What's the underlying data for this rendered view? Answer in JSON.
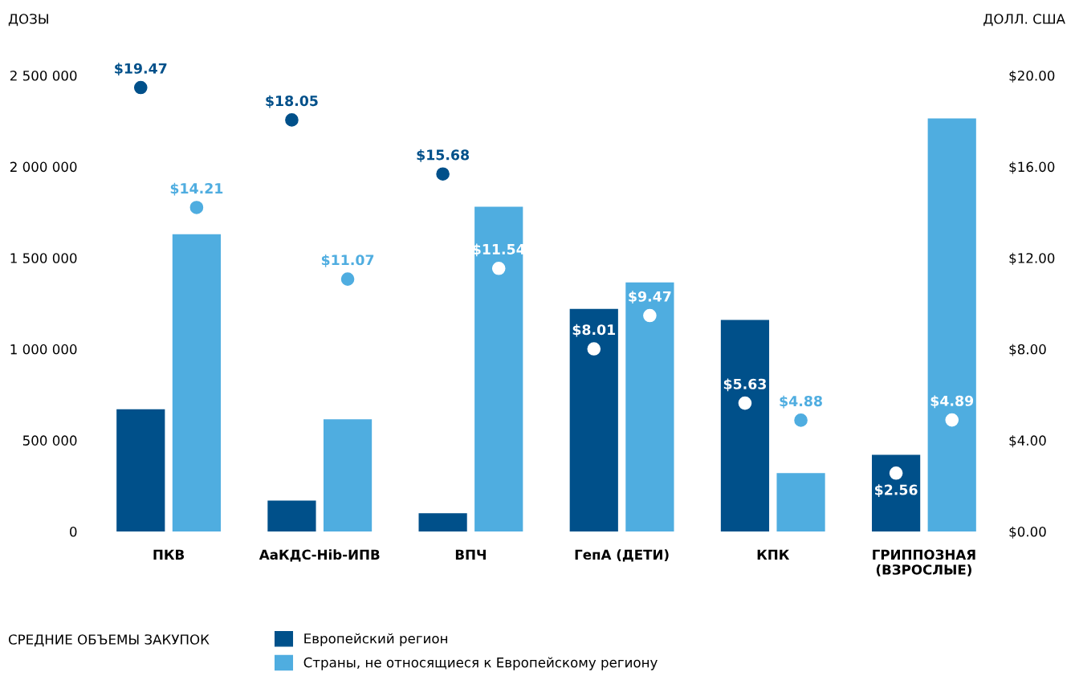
{
  "chart_data": {
    "type": "bar",
    "ylabel": "ДОЗЫ",
    "y2label": "ДОЛЛ. США",
    "legend_title": "СРЕДНИЕ ОБЪЕМЫ ЗАКУПОК",
    "legend": "bottom",
    "grid": false,
    "categories": [
      "ПКВ",
      "АаКДС-Hib-ИПВ",
      "ВПЧ",
      "ГепА (ДЕТИ)",
      "КПК",
      "ГРИППОЗНАЯ\n(ВЗРОСЛЫЕ)"
    ],
    "ylim": [
      0,
      2500000
    ],
    "yticks": [
      {
        "value": 0,
        "label": "0"
      },
      {
        "value": 500000,
        "label": "500 000"
      },
      {
        "value": 1000000,
        "label": "1 000 000"
      },
      {
        "value": 1500000,
        "label": "1 500 000"
      },
      {
        "value": 2000000,
        "label": "2 000 000"
      },
      {
        "value": 2500000,
        "label": "2 500 000"
      }
    ],
    "y2lim": [
      0,
      20
    ],
    "y2ticks": [
      {
        "value": 0,
        "label": "$0.00"
      },
      {
        "value": 4,
        "label": "$4.00"
      },
      {
        "value": 8,
        "label": "$8.00"
      },
      {
        "value": 12,
        "label": "$12.00"
      },
      {
        "value": 16,
        "label": "$16.00"
      },
      {
        "value": 20,
        "label": "$20.00"
      }
    ],
    "series": [
      {
        "name": "Европейский регион",
        "color": "#00508a",
        "values": [
          670000,
          170000,
          100000,
          1220000,
          1160000,
          420000
        ]
      },
      {
        "name": "Страны, не относящиеся к Европейскому региону",
        "color": "#4fade0",
        "values": [
          1630000,
          615000,
          1780000,
          1365000,
          320000,
          2265000
        ]
      },
      {
        "type": "scatter",
        "axis": "y2",
        "color": "#00508a",
        "colors": [
          "#00508a",
          "#00508a",
          "#00508a",
          "#ffffff",
          "#ffffff",
          "#ffffff"
        ],
        "marker": "circle",
        "data_labels": true,
        "value_labels": [
          "$19.47",
          "$18.05",
          "$15.68",
          "$8.01",
          "$5.63",
          "$2.56"
        ],
        "values": [
          19.47,
          18.05,
          15.68,
          8.01,
          5.63,
          2.56
        ]
      },
      {
        "type": "scatter",
        "axis": "y2",
        "color": "#4fade0",
        "colors": [
          "#4fade0",
          "#4fade0",
          "#ffffff",
          "#ffffff",
          "#4fade0",
          "#ffffff"
        ],
        "marker": "circle",
        "data_labels": true,
        "value_labels": [
          "$14.21",
          "$11.07",
          "$11.54",
          "$9.47",
          "$4.88",
          "$4.89"
        ],
        "values": [
          14.21,
          11.07,
          11.54,
          9.47,
          4.88,
          4.89
        ]
      }
    ]
  }
}
